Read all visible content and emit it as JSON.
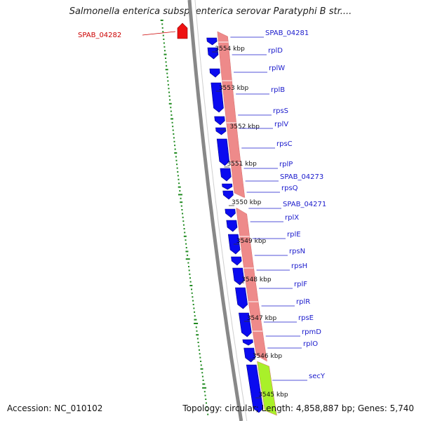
{
  "title": "Salmonella enterica subsp. enterica serovar Paratyphi B str....",
  "footer": {
    "accession": "Accession: NC_010102",
    "topology": "Topology: circular; Length: 4,858,887 bp; Genes: 5,740"
  },
  "colors": {
    "gene_forward": "#0b0bf0",
    "gene_reverse": "#ee1111",
    "label_blue": "#1a1acc",
    "label_red": "#cc0000",
    "operon_band": "#ee8a8a",
    "secy_band": "#a9f02a",
    "backbone": "#888888",
    "gc_ticks": "#1f8a1f"
  },
  "scale_labels": [
    "3554 kbp",
    "3553 kbp",
    "3552 kbp",
    "3551 kbp",
    "3550 kbp",
    "3549 kbp",
    "3548 kbp",
    "3547 kbp",
    "3546 kbp",
    "3545 kbp"
  ],
  "genes_forward": [
    "SPAB_04281",
    "rplD",
    "rplW",
    "rplB",
    "rpsS",
    "rplV",
    "rpsC",
    "rplP",
    "SPAB_04273",
    "rpsQ",
    "SPAB_04271",
    "rplX",
    "rplE",
    "rpsN",
    "rpsH",
    "rplF",
    "rplR",
    "rpsE",
    "rpmD",
    "rplO",
    "secY"
  ],
  "genes_reverse": [
    "SPAB_04282"
  ]
}
